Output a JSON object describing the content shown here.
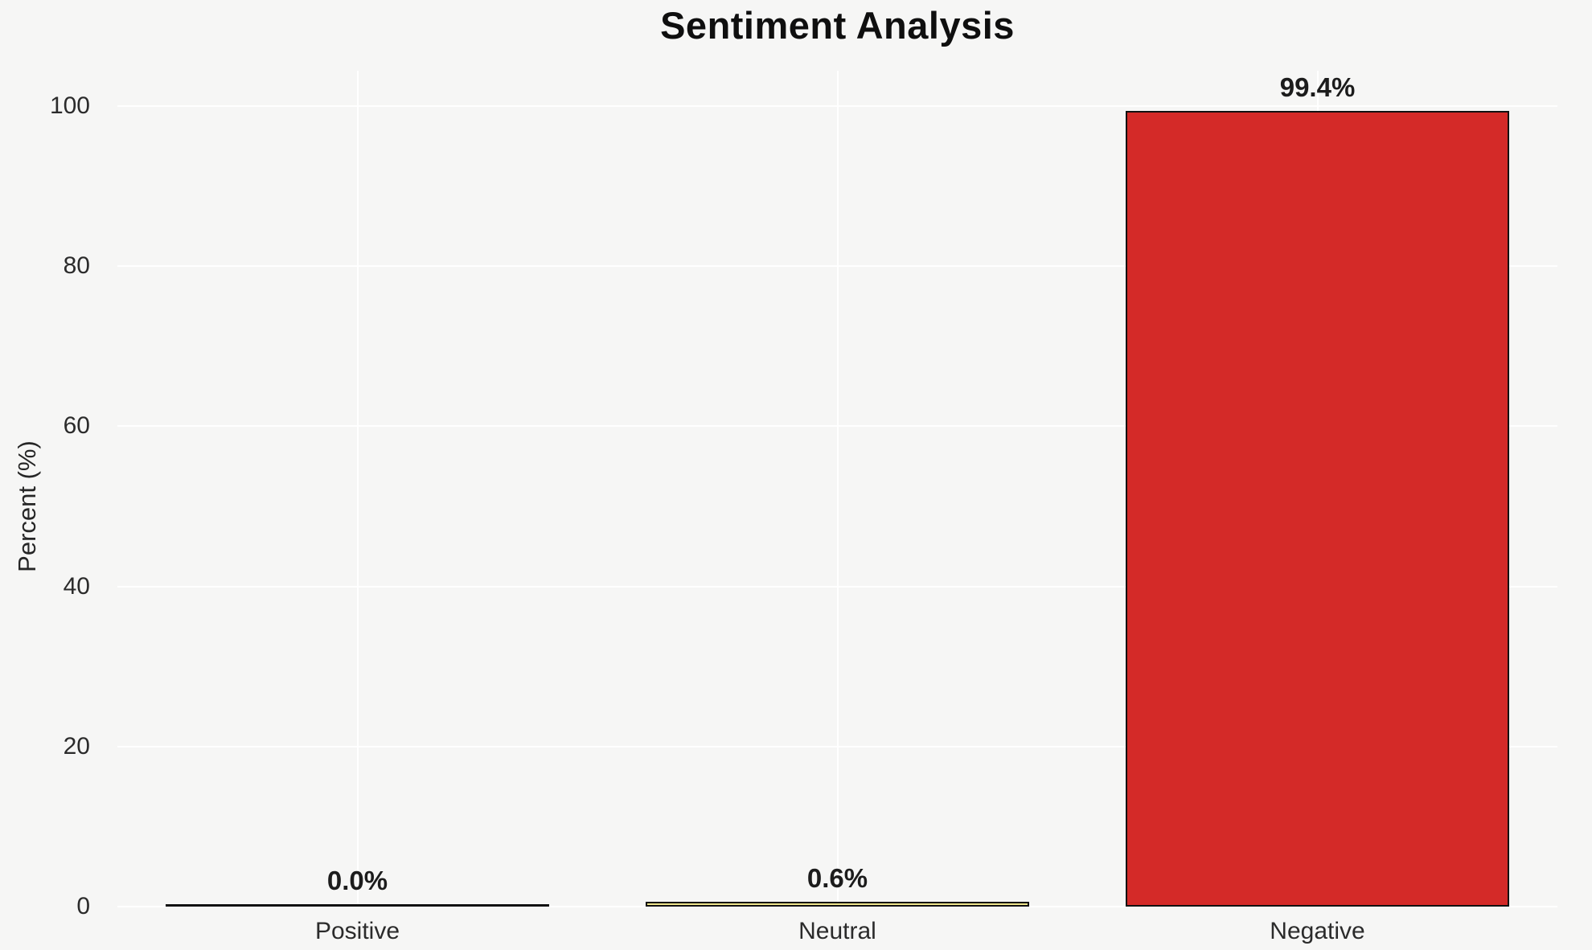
{
  "page": {
    "background_color": "#f6f6f5"
  },
  "chart_data": {
    "type": "bar",
    "title": "Sentiment Analysis",
    "xlabel": "",
    "ylabel": "Percent (%)",
    "categories": [
      "Positive",
      "Neutral",
      "Negative"
    ],
    "values": [
      0.0,
      0.6,
      99.4
    ],
    "bar_labels": [
      "0.0%",
      "0.6%",
      "99.4%"
    ],
    "bar_colors": [
      "transparent",
      "#f0e68c",
      "#d42a28"
    ],
    "bar_edge_color": "#111111",
    "yticks": [
      0,
      20,
      40,
      60,
      80,
      100
    ],
    "ylim": [
      0,
      105
    ],
    "grid": true,
    "gridline_color": "#ffffff",
    "legend_position": "none"
  }
}
